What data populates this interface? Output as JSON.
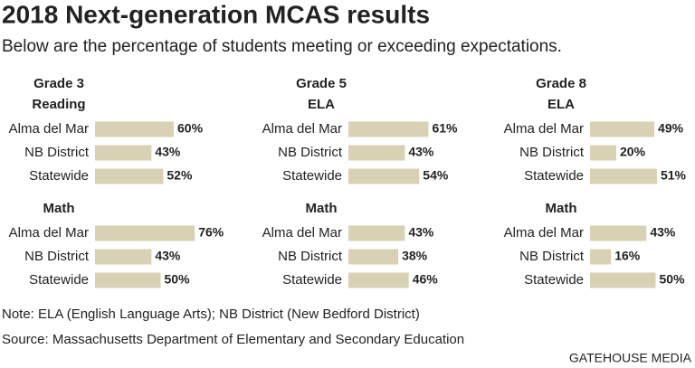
{
  "title": "2018  Next-generation MCAS results",
  "subtitle": "Below are the percentage of students meeting or exceeding expectations.",
  "column_headers": [
    "Grade 3",
    "Grade 5",
    "Grade 8"
  ],
  "note": "Note: ELA (English Language Arts); NB District (New Bedford District)",
  "source": "Source: Massachusetts Department of Elementary and Secondary Education",
  "credit": "GATEHOUSE MEDIA",
  "chart_data": [
    {
      "type": "bar",
      "title": "Reading",
      "categories": [
        "Alma del Mar",
        "NB District",
        "Statewide"
      ],
      "values": [
        60,
        43,
        52
      ],
      "value_labels": [
        "60%",
        "43%",
        "52%"
      ],
      "color": "#d8d1b3"
    },
    {
      "type": "bar",
      "title": "ELA",
      "categories": [
        "Alma del Mar",
        "NB District",
        "Statewide"
      ],
      "values": [
        61,
        43,
        54
      ],
      "value_labels": [
        "61%",
        "43%",
        "54%"
      ],
      "color": "#d8d1b3"
    },
    {
      "type": "bar",
      "title": "ELA",
      "categories": [
        "Alma del Mar",
        "NB District",
        "Statewide"
      ],
      "values": [
        49,
        20,
        51
      ],
      "value_labels": [
        "49%",
        "20%",
        "51%"
      ],
      "color": "#d8d1b3"
    },
    {
      "type": "bar",
      "title": "Math",
      "categories": [
        "Alma del Mar",
        "NB District",
        "Statewide"
      ],
      "values": [
        76,
        43,
        50
      ],
      "value_labels": [
        "76%",
        "43%",
        "50%"
      ],
      "color": "#d8d1b3"
    },
    {
      "type": "bar",
      "title": "Math",
      "categories": [
        "Alma del Mar",
        "NB District",
        "Statewide"
      ],
      "values": [
        43,
        38,
        46
      ],
      "value_labels": [
        "43%",
        "38%",
        "46%"
      ],
      "color": "#d8d1b3"
    },
    {
      "type": "bar",
      "title": "Math",
      "categories": [
        "Alma del Mar",
        "NB District",
        "Statewide"
      ],
      "values": [
        43,
        16,
        50
      ],
      "value_labels": [
        "43%",
        "16%",
        "50%"
      ],
      "color": "#d8d1b3"
    }
  ]
}
